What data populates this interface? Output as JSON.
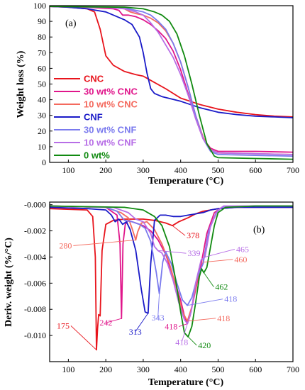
{
  "chart_data": [
    {
      "type": "line",
      "panel_label": "(a)",
      "xlabel": "Temperature (°C)",
      "ylabel": "Weight loss (%)",
      "xlim": [
        50,
        700
      ],
      "ylim": [
        0,
        100
      ],
      "xticks": [
        100,
        200,
        300,
        400,
        500,
        600,
        700
      ],
      "yticks": [
        0,
        10,
        20,
        30,
        40,
        50,
        60,
        70,
        80,
        90,
        100
      ],
      "legend_position": "left",
      "series": [
        {
          "name": "CNC",
          "color": "#e8141c",
          "x": [
            50,
            100,
            150,
            170,
            185,
            200,
            220,
            250,
            280,
            300,
            330,
            360,
            400,
            450,
            500,
            550,
            600,
            650,
            700
          ],
          "y": [
            99.5,
            99,
            98,
            96,
            85,
            68,
            62,
            58,
            56,
            55,
            51,
            47,
            41,
            37,
            34,
            32,
            30.5,
            29.5,
            29
          ]
        },
        {
          "name": "30 wt% CNC",
          "color": "#e0168b",
          "x": [
            50,
            150,
            220,
            235,
            245,
            260,
            280,
            300,
            320,
            340,
            360,
            380,
            400,
            420,
            440,
            460,
            480,
            500,
            600,
            700
          ],
          "y": [
            99.5,
            99,
            98,
            97,
            94,
            94,
            93,
            91,
            88,
            84,
            79,
            71,
            59,
            44,
            28,
            15,
            9,
            7,
            7,
            6.5
          ]
        },
        {
          "name": "10 wt% CNC",
          "color": "#f46a5e",
          "x": [
            50,
            200,
            250,
            265,
            280,
            300,
            320,
            340,
            360,
            380,
            400,
            420,
            440,
            460,
            480,
            500,
            600,
            700
          ],
          "y": [
            99.5,
            99,
            98,
            96,
            95,
            94,
            92,
            89,
            84,
            76,
            64,
            48,
            30,
            16,
            8,
            6,
            5.5,
            5
          ]
        },
        {
          "name": "CNF",
          "color": "#1a1ac8",
          "x": [
            50,
            100,
            150,
            200,
            250,
            270,
            290,
            300,
            310,
            320,
            330,
            350,
            400,
            450,
            500,
            550,
            600,
            650,
            700
          ],
          "y": [
            99.5,
            99,
            98,
            96,
            91,
            88,
            80,
            70,
            57,
            47,
            44,
            42,
            39,
            35,
            32,
            30.5,
            29.5,
            29,
            28.5
          ]
        },
        {
          "name": "30 wt% CNF",
          "color": "#7a7aee",
          "x": [
            50,
            200,
            260,
            280,
            300,
            320,
            340,
            360,
            380,
            400,
            420,
            440,
            460,
            480,
            500,
            600,
            700
          ],
          "y": [
            99.5,
            99,
            98,
            97,
            96,
            94,
            90,
            85,
            76,
            64,
            48,
            30,
            15,
            7,
            5,
            4.5,
            4
          ]
        },
        {
          "name": "10 wt% CNF",
          "color": "#b76ee6",
          "x": [
            50,
            200,
            250,
            280,
            300,
            320,
            340,
            360,
            380,
            400,
            420,
            440,
            460,
            480,
            500,
            600,
            700
          ],
          "y": [
            99.5,
            99,
            98,
            96,
            94,
            89,
            83,
            75,
            67,
            56,
            43,
            28,
            15,
            8,
            6,
            5.5,
            5
          ]
        },
        {
          "name": "0 wt%",
          "color": "#118a11",
          "x": [
            50,
            250,
            300,
            330,
            350,
            370,
            390,
            410,
            430,
            450,
            470,
            490,
            500,
            600,
            700
          ],
          "y": [
            99.5,
            99,
            98,
            96,
            94,
            90,
            82,
            68,
            50,
            30,
            12,
            4,
            3,
            2.5,
            2
          ]
        }
      ]
    },
    {
      "type": "line",
      "panel_label": "(b)",
      "xlabel": "Temperature (°C)",
      "ylabel": "Deriv. weight (%/°C)",
      "xlim": [
        50,
        700
      ],
      "ylim": [
        -0.012,
        0.0002
      ],
      "xticks": [
        100,
        200,
        300,
        400,
        500,
        600,
        700
      ],
      "yticks": [
        "-0.000",
        "-0.002",
        "-0.004",
        "-0.006",
        "-0.008",
        "-0.010"
      ],
      "ytick_values": [
        0,
        -0.002,
        -0.004,
        -0.006,
        -0.008,
        -0.01
      ],
      "series": [
        {
          "color": "#e8141c",
          "x": [
            50,
            150,
            165,
            172,
            175,
            178,
            181,
            185,
            190,
            200,
            220,
            250,
            280,
            300,
            330,
            360,
            378,
            395,
            420,
            440,
            460,
            480,
            500,
            550,
            600,
            700
          ],
          "y": [
            -0.0003,
            -0.0004,
            -0.0009,
            -0.004,
            -0.0111,
            -0.0095,
            -0.0084,
            -0.0085,
            -0.0035,
            -0.0015,
            -0.0012,
            -0.0011,
            -0.0011,
            -0.0011,
            -0.0012,
            -0.0014,
            -0.0016,
            -0.0013,
            -0.001,
            -0.0007,
            -0.0005,
            -0.0004,
            -0.0003,
            -0.0002,
            -0.0002,
            -0.0002
          ]
        },
        {
          "color": "#e0168b",
          "x": [
            50,
            200,
            230,
            238,
            242,
            246,
            252,
            260,
            280,
            300,
            320,
            340,
            360,
            380,
            400,
            410,
            418,
            425,
            440,
            455,
            470,
            490,
            510,
            600,
            700
          ],
          "y": [
            -0.0001,
            -0.0002,
            -0.0008,
            -0.003,
            -0.0087,
            -0.003,
            -0.0015,
            -0.0012,
            -0.0014,
            -0.0016,
            -0.002,
            -0.0027,
            -0.0038,
            -0.0055,
            -0.0073,
            -0.0085,
            -0.0091,
            -0.0085,
            -0.0065,
            -0.0045,
            -0.0022,
            -0.0006,
            -0.0002,
            -0.0001,
            -0.0001
          ]
        },
        {
          "color": "#f46a5e",
          "x": [
            50,
            200,
            240,
            260,
            270,
            280,
            285,
            295,
            310,
            330,
            350,
            370,
            390,
            405,
            418,
            430,
            445,
            460,
            475,
            495,
            510,
            600,
            700
          ],
          "y": [
            -0.0001,
            -0.0002,
            -0.0006,
            -0.001,
            -0.0018,
            -0.0027,
            -0.0021,
            -0.0014,
            -0.0013,
            -0.0019,
            -0.003,
            -0.0045,
            -0.0065,
            -0.0082,
            -0.0089,
            -0.0078,
            -0.0056,
            -0.0044,
            -0.002,
            -0.0006,
            -0.0002,
            -0.0001,
            -0.0001
          ]
        },
        {
          "color": "#1a1ac8",
          "x": [
            50,
            150,
            200,
            215,
            225,
            235,
            245,
            255,
            265,
            280,
            295,
            305,
            313,
            320,
            330,
            345,
            360,
            380,
            400,
            420,
            440,
            460,
            480,
            500,
            550,
            600,
            700
          ],
          "y": [
            -0.0002,
            -0.0003,
            -0.0004,
            -0.0008,
            -0.0013,
            -0.0011,
            -0.0015,
            -0.0013,
            -0.0019,
            -0.0035,
            -0.0065,
            -0.0082,
            -0.0083,
            -0.0045,
            -0.0012,
            -0.0008,
            -0.0008,
            -0.0009,
            -0.0009,
            -0.0008,
            -0.0007,
            -0.0006,
            -0.0004,
            -0.0003,
            -0.0002,
            -0.0002,
            -0.0002
          ]
        },
        {
          "color": "#7a7aee",
          "x": [
            50,
            200,
            230,
            250,
            270,
            290,
            305,
            320,
            335,
            343,
            352,
            360,
            375,
            390,
            405,
            418,
            430,
            445,
            460,
            475,
            495,
            510,
            600,
            700
          ],
          "y": [
            -0.0001,
            -0.0002,
            -0.0005,
            -0.0012,
            -0.0013,
            -0.0015,
            -0.0018,
            -0.0028,
            -0.0052,
            -0.0068,
            -0.0044,
            -0.0036,
            -0.0045,
            -0.006,
            -0.0073,
            -0.0077,
            -0.0071,
            -0.0055,
            -0.0045,
            -0.002,
            -0.0006,
            -0.0002,
            -0.0001,
            -0.0001
          ]
        },
        {
          "color": "#b76ee6",
          "x": [
            50,
            220,
            260,
            280,
            300,
            320,
            330,
            339,
            350,
            365,
            380,
            395,
            410,
            418,
            428,
            440,
            455,
            465,
            480,
            500,
            515,
            600,
            700
          ],
          "y": [
            -0.0001,
            -0.0002,
            -0.0006,
            -0.0011,
            -0.0013,
            -0.0022,
            -0.0032,
            -0.0035,
            -0.0037,
            -0.0045,
            -0.0058,
            -0.0075,
            -0.0088,
            -0.0091,
            -0.0082,
            -0.006,
            -0.0042,
            -0.004,
            -0.0016,
            -0.0004,
            -0.0001,
            -0.0001,
            -0.0001
          ]
        },
        {
          "color": "#118a11",
          "x": [
            50,
            250,
            300,
            330,
            350,
            370,
            385,
            400,
            410,
            420,
            430,
            440,
            450,
            456,
            462,
            470,
            480,
            490,
            500,
            520,
            600,
            700
          ],
          "y": [
            -0.0001,
            -0.0002,
            -0.0004,
            -0.0009,
            -0.0016,
            -0.0032,
            -0.0055,
            -0.0082,
            -0.0098,
            -0.0101,
            -0.0093,
            -0.0075,
            -0.0055,
            -0.0049,
            -0.0052,
            -0.0048,
            -0.0032,
            -0.0016,
            -0.0006,
            -0.0002,
            -0.0001,
            -0.0001
          ]
        }
      ],
      "annotations": [
        {
          "text": "175",
          "color": "#e8141c",
          "x": 175,
          "y": -0.0111
        },
        {
          "text": "242",
          "color": "#e0168b",
          "x": 242,
          "y": -0.0087
        },
        {
          "text": "313",
          "color": "#1a1ac8",
          "x": 313,
          "y": -0.0083
        },
        {
          "text": "280",
          "color": "#f46a5e",
          "x": 280,
          "y": -0.0027
        },
        {
          "text": "339",
          "color": "#b76ee6",
          "x": 339,
          "y": -0.0035
        },
        {
          "text": "343",
          "color": "#7a7aee",
          "x": 343,
          "y": -0.0068
        },
        {
          "text": "378",
          "color": "#e8141c",
          "x": 378,
          "y": -0.0016
        },
        {
          "text": "418",
          "color": "#e0168b",
          "x": 418,
          "y": -0.0091
        },
        {
          "text": "418",
          "color": "#b76ee6",
          "x": 418,
          "y": -0.0091
        },
        {
          "text": "418",
          "color": "#f46a5e",
          "x": 418,
          "y": -0.0089
        },
        {
          "text": "418",
          "color": "#7a7aee",
          "x": 418,
          "y": -0.0077
        },
        {
          "text": "420",
          "color": "#118a11",
          "x": 420,
          "y": -0.0101
        },
        {
          "text": "462",
          "color": "#118a11",
          "x": 462,
          "y": -0.0052
        },
        {
          "text": "460",
          "color": "#f46a5e",
          "x": 460,
          "y": -0.0044
        },
        {
          "text": "465",
          "color": "#b76ee6",
          "x": 465,
          "y": -0.004
        }
      ]
    }
  ]
}
